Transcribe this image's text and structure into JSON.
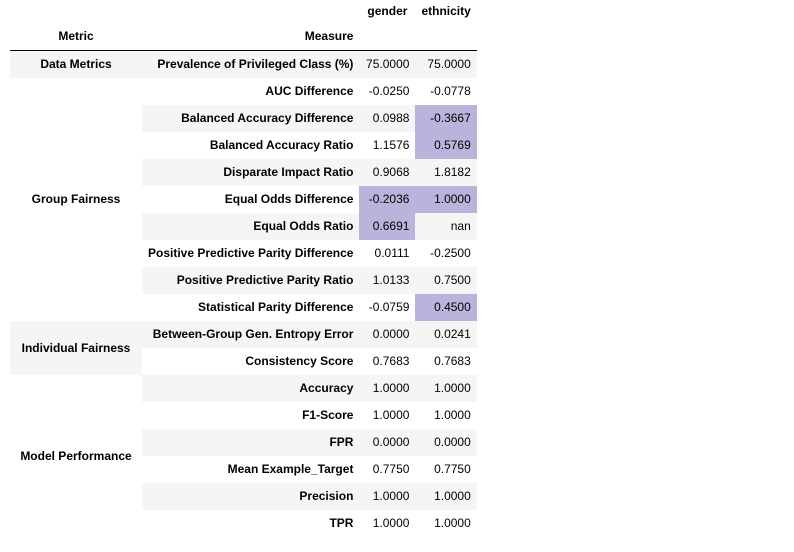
{
  "header": {
    "columns": [
      "gender",
      "ethnicity"
    ],
    "metric_label": "Metric",
    "measure_label": "Measure"
  },
  "colors": {
    "highlight": "#bbb3dc",
    "stripe": "#f5f5f5"
  },
  "groups": [
    {
      "name": "Data Metrics",
      "rows": [
        {
          "measure": "Prevalence of Privileged Class (%)",
          "gender": "75.0000",
          "ethnicity": "75.0000"
        }
      ]
    },
    {
      "name": "Group Fairness",
      "rows": [
        {
          "measure": "AUC Difference",
          "gender": "-0.0250",
          "ethnicity": "-0.0778"
        },
        {
          "measure": "Balanced Accuracy Difference",
          "gender": "0.0988",
          "ethnicity": "-0.3667"
        },
        {
          "measure": "Balanced Accuracy Ratio",
          "gender": "1.1576",
          "ethnicity": "0.5769"
        },
        {
          "measure": "Disparate Impact Ratio",
          "gender": "0.9068",
          "ethnicity": "1.8182"
        },
        {
          "measure": "Equal Odds Difference",
          "gender": "-0.2036",
          "ethnicity": "1.0000"
        },
        {
          "measure": "Equal Odds Ratio",
          "gender": "0.6691",
          "ethnicity": "nan"
        },
        {
          "measure": "Positive Predictive Parity Difference",
          "gender": "0.0111",
          "ethnicity": "-0.2500"
        },
        {
          "measure": "Positive Predictive Parity Ratio",
          "gender": "1.0133",
          "ethnicity": "0.7500"
        },
        {
          "measure": "Statistical Parity Difference",
          "gender": "-0.0759",
          "ethnicity": "0.4500"
        }
      ]
    },
    {
      "name": "Individual Fairness",
      "rows": [
        {
          "measure": "Between-Group Gen. Entropy Error",
          "gender": "0.0000",
          "ethnicity": "0.0241"
        },
        {
          "measure": "Consistency Score",
          "gender": "0.7683",
          "ethnicity": "0.7683"
        }
      ]
    },
    {
      "name": "Model Performance",
      "rows": [
        {
          "measure": "Accuracy",
          "gender": "1.0000",
          "ethnicity": "1.0000"
        },
        {
          "measure": "F1-Score",
          "gender": "1.0000",
          "ethnicity": "1.0000"
        },
        {
          "measure": "FPR",
          "gender": "0.0000",
          "ethnicity": "0.0000"
        },
        {
          "measure": "Mean Example_Target",
          "gender": "0.7750",
          "ethnicity": "0.7750"
        },
        {
          "measure": "Precision",
          "gender": "1.0000",
          "ethnicity": "1.0000"
        },
        {
          "measure": "TPR",
          "gender": "1.0000",
          "ethnicity": "1.0000"
        }
      ]
    }
  ],
  "highlighted": [
    [
      "Group Fairness",
      "Balanced Accuracy Difference",
      "ethnicity"
    ],
    [
      "Group Fairness",
      "Balanced Accuracy Ratio",
      "ethnicity"
    ],
    [
      "Group Fairness",
      "Equal Odds Difference",
      "gender"
    ],
    [
      "Group Fairness",
      "Equal Odds Difference",
      "ethnicity"
    ],
    [
      "Group Fairness",
      "Equal Odds Ratio",
      "gender"
    ],
    [
      "Group Fairness",
      "Statistical Parity Difference",
      "ethnicity"
    ]
  ]
}
